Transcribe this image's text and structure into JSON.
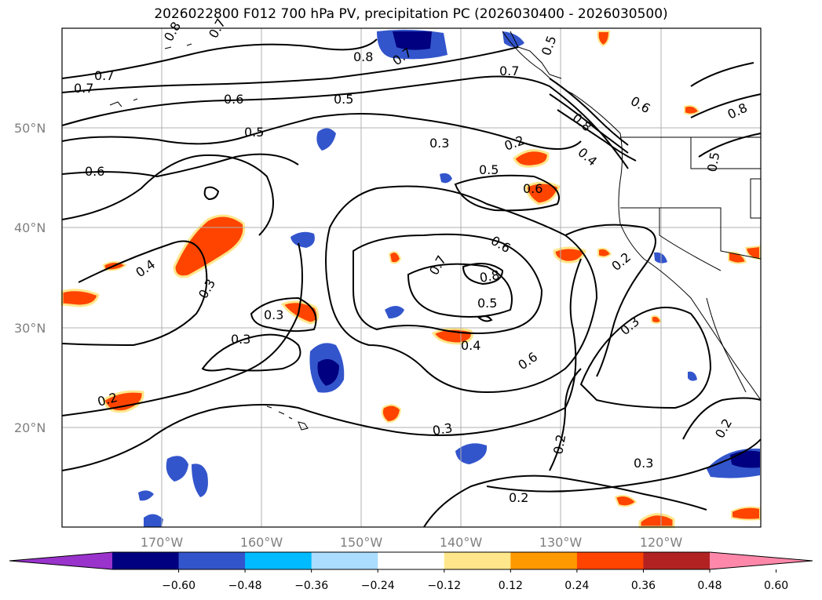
{
  "title": "2026022800 F012 700 hPa PV, precipitation PC (2026030400 - 2026030500)",
  "lat_labels": [
    "50°N",
    "40°N",
    "30°N",
    "20°N"
  ],
  "lon_labels": [
    "170°W",
    "160°W",
    "150°W",
    "140°W",
    "130°W",
    "120°W"
  ],
  "contour_labels": [
    "0.8",
    "0.7",
    "0.8",
    "0.7",
    "0.5",
    "0.7",
    "0.7",
    "0.7",
    "0.6",
    "0.5",
    "0.6",
    "0.8",
    "0.5",
    "0.3",
    "0.2",
    "0.8",
    "0.4",
    "0.5",
    "0.5",
    "0.6",
    "0.6",
    "0.4",
    "0.3",
    "0.7",
    "0.6",
    "0.8",
    "0.5",
    "0.2",
    "0.3",
    "0.3",
    "0.4",
    "0.6",
    "0.3",
    "0.2",
    "0.3",
    "0.2",
    "0.2",
    "0.3",
    "0.2"
  ],
  "colorbar": {
    "ticks": [
      "−0.60",
      "−0.48",
      "−0.36",
      "−0.24",
      "−0.12",
      "0.12",
      "0.24",
      "0.36",
      "0.48",
      "0.60"
    ],
    "colors": [
      "#9933cc",
      "#000080",
      "#3355cc",
      "#00bbff",
      "#aaddff",
      "#ffffff",
      "#ffe68a",
      "#ff9900",
      "#ff4400",
      "#b22222",
      "#ff88aa"
    ]
  },
  "palette": {
    "land_outline": "#000000",
    "grid": "#b0b0b0",
    "contour": "#000000"
  }
}
